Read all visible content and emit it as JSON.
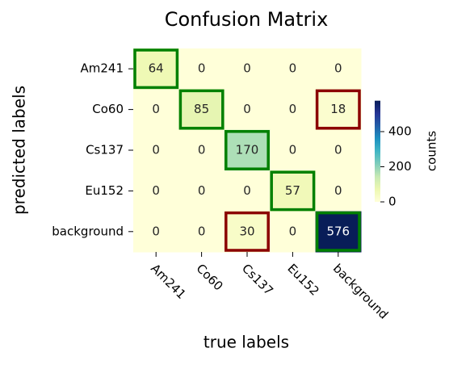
{
  "chart_data": {
    "type": "heatmap",
    "title": "Confusion Matrix",
    "xlabel": "true labels",
    "ylabel": "predicted labels",
    "x_categories": [
      "Am241",
      "Co60",
      "Cs137",
      "Eu152",
      "background"
    ],
    "y_categories": [
      "Am241",
      "Co60",
      "Cs137",
      "Eu152",
      "background"
    ],
    "values": [
      [
        64,
        0,
        0,
        0,
        0
      ],
      [
        0,
        85,
        0,
        0,
        18
      ],
      [
        0,
        0,
        170,
        0,
        0
      ],
      [
        0,
        0,
        0,
        57,
        0
      ],
      [
        0,
        0,
        30,
        0,
        576
      ]
    ],
    "colorbar_label": "counts",
    "clim": [
      0,
      576
    ],
    "cticks": [
      0,
      200,
      400
    ],
    "colormap": [
      "#ffffd9",
      "#edf8b1",
      "#c7e9b4",
      "#7fcdbb",
      "#41b6c4",
      "#1d91c0",
      "#225ea8",
      "#253494",
      "#081d58"
    ],
    "correct_color": "#008000",
    "error_color": "#8b0000"
  }
}
